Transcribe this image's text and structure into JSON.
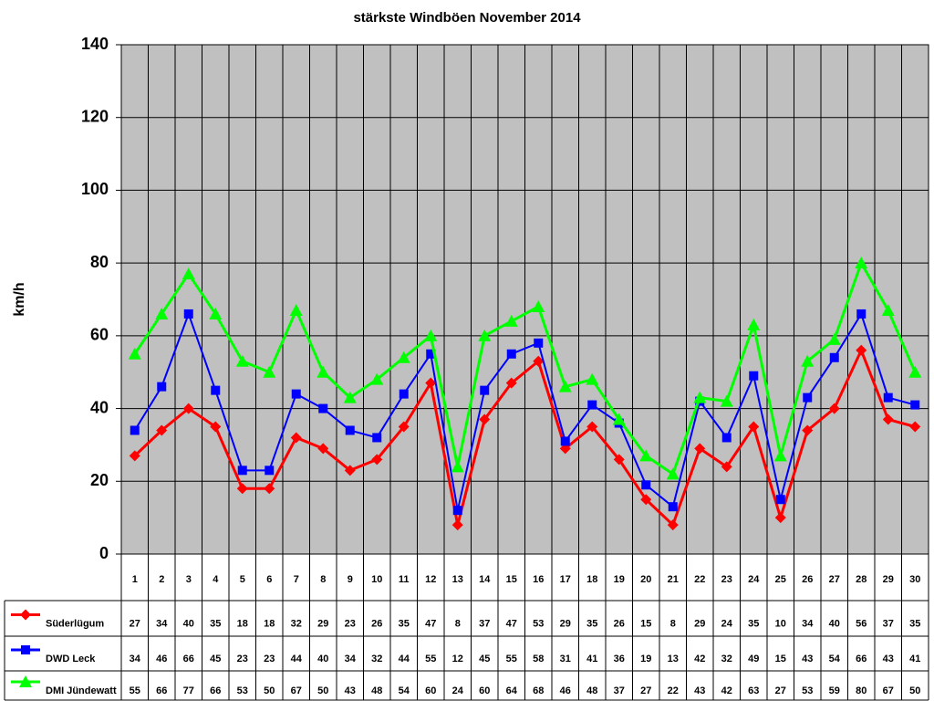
{
  "chart_data": {
    "type": "line",
    "title": "stärkste Windböen November 2014",
    "y_label": "km/h",
    "categories": [
      "1",
      "2",
      "3",
      "4",
      "5",
      "6",
      "7",
      "8",
      "9",
      "10",
      "11",
      "12",
      "13",
      "14",
      "15",
      "16",
      "17",
      "18",
      "19",
      "20",
      "21",
      "22",
      "23",
      "24",
      "25",
      "26",
      "27",
      "28",
      "29",
      "30"
    ],
    "series": [
      {
        "name": "Süderlügum",
        "color": "#ff0000",
        "marker": "diamond",
        "values": [
          27,
          34,
          40,
          35,
          18,
          18,
          32,
          29,
          23,
          26,
          35,
          47,
          8,
          37,
          47,
          53,
          29,
          35,
          26,
          15,
          8,
          29,
          24,
          35,
          10,
          34,
          40,
          56,
          37,
          35
        ]
      },
      {
        "name": "DWD Leck",
        "color": "#0000ff",
        "marker": "square",
        "values": [
          34,
          46,
          66,
          45,
          23,
          23,
          44,
          40,
          34,
          32,
          44,
          55,
          12,
          45,
          55,
          58,
          31,
          41,
          36,
          19,
          13,
          42,
          32,
          49,
          15,
          43,
          54,
          66,
          43,
          41
        ]
      },
      {
        "name": "DMI Jündewatt",
        "color": "#00ff00",
        "marker": "triangle",
        "values": [
          55,
          66,
          77,
          66,
          53,
          50,
          67,
          50,
          43,
          48,
          54,
          60,
          24,
          60,
          64,
          68,
          46,
          48,
          37,
          27,
          22,
          43,
          42,
          63,
          27,
          53,
          59,
          80,
          67,
          50
        ]
      }
    ],
    "ylim": [
      0,
      140
    ],
    "yticks": [
      0,
      20,
      40,
      60,
      80,
      100,
      120,
      140
    ],
    "grid": true,
    "plot_background": "#c0c0c0"
  }
}
